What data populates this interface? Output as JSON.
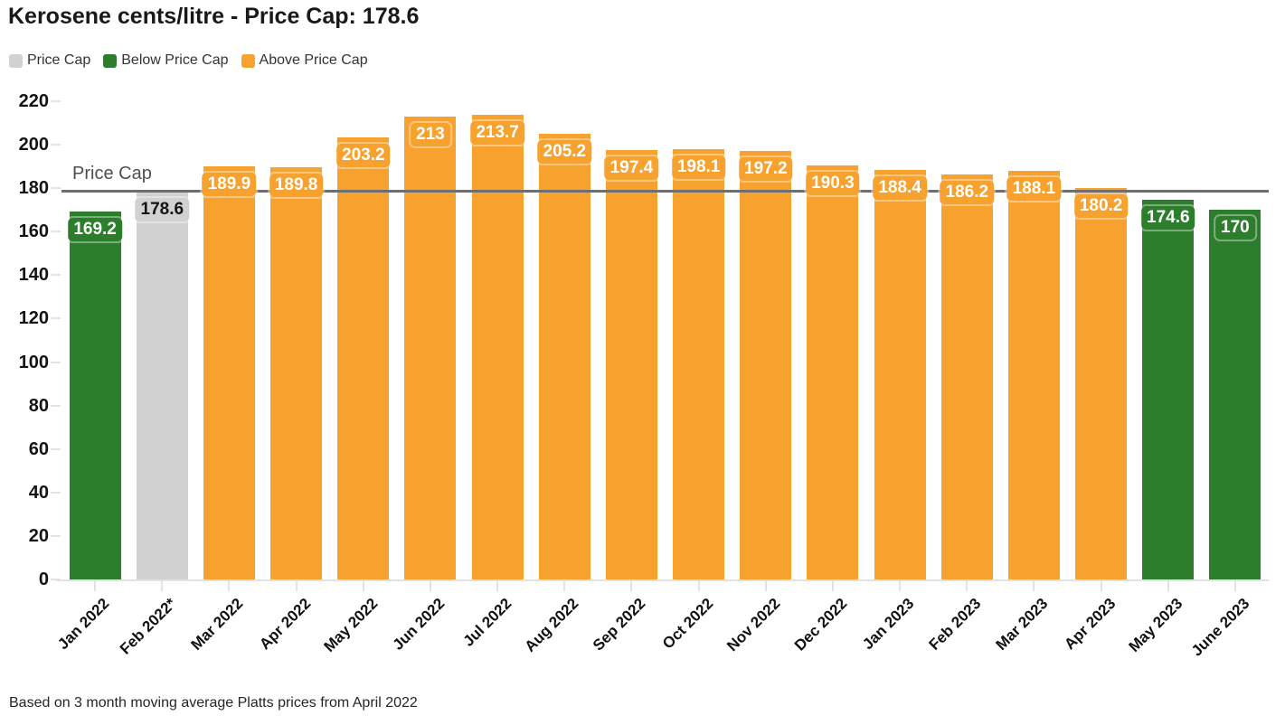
{
  "title": "Kerosene cents/litre - Price Cap: 178.6",
  "footer": "Based on 3 month moving average Platts prices from April 2022",
  "price_cap_line": {
    "label": "Price Cap",
    "value": 178.6
  },
  "colors": {
    "below": "#2c7d2c",
    "cap_bar": "#d1d1d1",
    "above": "#f7a22e",
    "cap_line": "#6e6e6e",
    "axis_tick": "#e2e2e2"
  },
  "legend": [
    {
      "label": "Price Cap",
      "status": "cap_bar"
    },
    {
      "label": "Below Price Cap",
      "status": "below"
    },
    {
      "label": "Above Price Cap",
      "status": "above"
    }
  ],
  "chart_data": {
    "type": "bar",
    "title": "Kerosene cents/litre - Price Cap: 178.6",
    "xlabel": "",
    "ylabel": "",
    "ylim": [
      0,
      220
    ],
    "yticks": [
      0,
      20,
      40,
      60,
      80,
      100,
      120,
      140,
      160,
      180,
      200,
      220
    ],
    "grid": false,
    "legend_position": "top-left",
    "price_cap": 178.6,
    "annotation": "Price Cap",
    "categories": [
      "Jan 2022",
      "Feb 2022*",
      "Mar 2022",
      "Apr 2022",
      "May 2022",
      "Jun 2022",
      "Jul 2022",
      "Aug 2022",
      "Sep 2022",
      "Oct 2022",
      "Nov 2022",
      "Dec 2022",
      "Jan 2023",
      "Feb 2023",
      "Mar 2023",
      "Apr 2023",
      "May 2023",
      "June 2023"
    ],
    "values": [
      169.2,
      178.6,
      189.9,
      189.8,
      203.2,
      213,
      213.7,
      205.2,
      197.4,
      198.1,
      197.2,
      190.3,
      188.4,
      186.2,
      188.1,
      180.2,
      174.6,
      170
    ],
    "value_labels": [
      "169.2",
      "178.6",
      "189.9",
      "189.8",
      "203.2",
      "213",
      "213.7",
      "205.2",
      "197.4",
      "198.1",
      "197.2",
      "190.3",
      "188.4",
      "186.2",
      "188.1",
      "180.2",
      "174.6",
      "170"
    ],
    "bar_status": [
      "below",
      "cap",
      "above",
      "above",
      "above",
      "above",
      "above",
      "above",
      "above",
      "above",
      "above",
      "above",
      "above",
      "above",
      "above",
      "above",
      "below",
      "below"
    ]
  }
}
